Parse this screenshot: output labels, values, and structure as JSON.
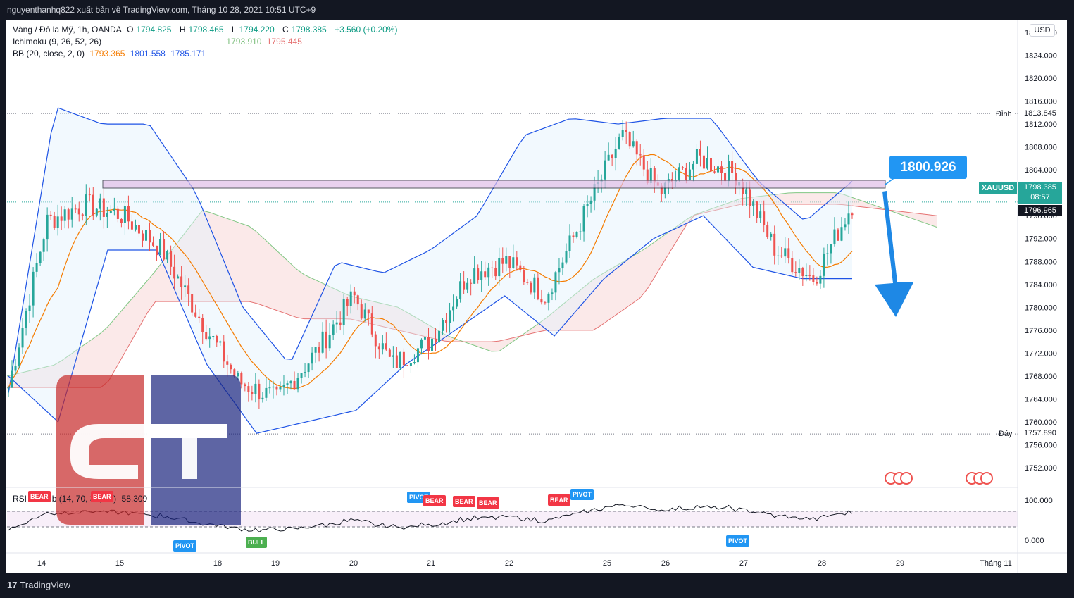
{
  "header": {
    "publish_text": "nguyenthanhq822 xuất bản về TradingView.com, Tháng 10 28, 2021 10:51 UTC+9"
  },
  "footer": {
    "brand": "TradingView"
  },
  "legend": {
    "symbol": "Vàng / Đô la Mỹ, 1h, OANDA",
    "ohlc": {
      "o_label": "O",
      "o": "1794.825",
      "h_label": "H",
      "h": "1798.465",
      "l_label": "L",
      "l": "1794.220",
      "c_label": "C",
      "c": "1798.385",
      "change": "+3.560 (+0.20%)"
    },
    "ichimoku": {
      "label": "Ichimoku (9, 26, 52, 26)",
      "v1": "1793.910",
      "v2": "1795.445"
    },
    "bb": {
      "label": "BB (20, close, 2, 0)",
      "basis": "1793.365",
      "upper": "1801.558",
      "lower": "1785.171"
    },
    "rsi": {
      "label": "RSI Div.  Lib (14, 70, 30, 90)",
      "value": "58.309"
    }
  },
  "axis": {
    "currency": "USD",
    "price_ticks": [
      "1828.000",
      "1824.000",
      "1820.000",
      "1816.000",
      "1812.000",
      "1808.000",
      "1804.000",
      "1800.000",
      "1796.000",
      "1792.000",
      "1788.000",
      "1784.000",
      "1780.000",
      "1776.000",
      "1772.000",
      "1768.000",
      "1764.000",
      "1760.000",
      "1756.000",
      "1752.000"
    ],
    "rsi_ticks": [
      "100.000",
      "0.000"
    ],
    "date_ticks": [
      "14",
      "15",
      "18",
      "19",
      "20",
      "21",
      "22",
      "25",
      "26",
      "27",
      "28",
      "29",
      "Tháng 11"
    ]
  },
  "annotations": {
    "target_price": "1800.926",
    "high_label": "Đỉnh",
    "high_value": "1813.845",
    "low_label": "Đáy",
    "low_value": "1757.890",
    "ticker": "XAUUSD",
    "last_price": "1798.385",
    "countdown": "08:57",
    "line_price": "1796.965"
  },
  "signals": [
    {
      "text": "BEAR",
      "color": "red"
    },
    {
      "text": "BEAR",
      "color": "red"
    },
    {
      "text": "PIVOT",
      "color": "blue"
    },
    {
      "text": "BULL",
      "color": "green"
    },
    {
      "text": "PIVOT",
      "color": "blue"
    },
    {
      "text": "BEAR",
      "color": "red"
    },
    {
      "text": "BEAR",
      "color": "red"
    },
    {
      "text": "BEAR",
      "color": "red"
    },
    {
      "text": "BEAR",
      "color": "red"
    },
    {
      "text": "PIVOT",
      "color": "blue"
    },
    {
      "text": "PIVOT",
      "color": "blue"
    }
  ],
  "chart_data": {
    "type": "candlestick",
    "title": "Vàng / Đô la Mỹ, 1h, OANDA",
    "ylim": [
      1750,
      1830
    ],
    "x": [
      "14",
      "15",
      "18",
      "19",
      "20",
      "21",
      "22",
      "25",
      "26",
      "27",
      "28"
    ],
    "close_path": [
      1766,
      1795,
      1798,
      1796,
      1790,
      1778,
      1767,
      1764,
      1772,
      1782,
      1770,
      1774,
      1786,
      1788,
      1782,
      1796,
      1810,
      1800,
      1806,
      1803,
      1790,
      1785,
      1798
    ],
    "bb_upper_path": [
      1765,
      1815,
      1812,
      1812,
      1800,
      1780,
      1770,
      1788,
      1786,
      1790,
      1796,
      1810,
      1813,
      1812,
      1813,
      1813,
      1802,
      1795,
      1802
    ],
    "bb_lower_path": [
      1768,
      1760,
      1790,
      1790,
      1770,
      1758,
      1760,
      1762,
      1770,
      1776,
      1782,
      1775,
      1785,
      1792,
      1796,
      1787,
      1785,
      1785
    ],
    "colors": {
      "up": "#26a69a",
      "down": "#ef5350",
      "bb": "#1e53e5",
      "basis": "#f57c00",
      "callout": "#2196f3"
    }
  }
}
